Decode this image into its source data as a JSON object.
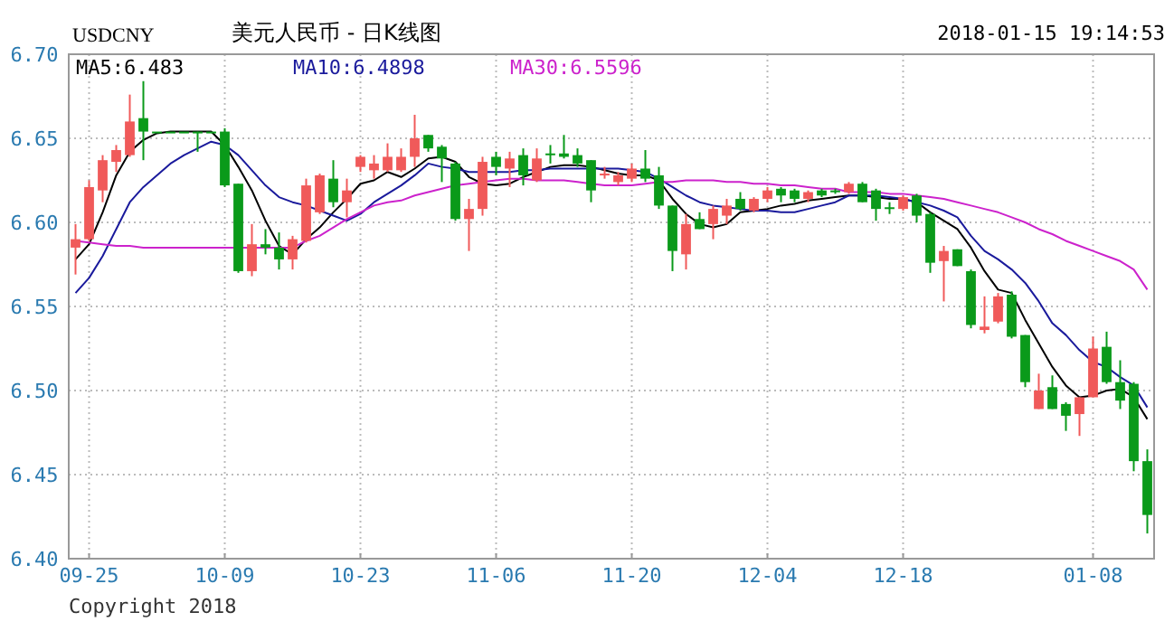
{
  "chart_data": {
    "type": "candlestick",
    "title": "美元人民币 - 日K线图",
    "subtitle": "USDCNY",
    "annotations": [
      "2018-01-15 19:14:53",
      "Copyright 2018"
    ],
    "categories": [
      null,
      "09-25",
      null,
      null,
      null,
      null,
      null,
      null,
      null,
      null,
      null,
      "10-09",
      null,
      null,
      null,
      null,
      null,
      null,
      null,
      null,
      null,
      "10-23",
      null,
      null,
      null,
      null,
      null,
      null,
      null,
      null,
      null,
      "11-06",
      null,
      null,
      null,
      null,
      null,
      null,
      null,
      null,
      null,
      "11-20",
      null,
      null,
      null,
      null,
      null,
      null,
      null,
      null,
      null,
      "12-04",
      null,
      null,
      null,
      null,
      null,
      null,
      null,
      null,
      null,
      "12-18",
      null,
      null,
      null,
      null,
      null,
      null,
      null,
      null,
      null,
      null,
      null,
      null,
      null,
      "01-08",
      null,
      null,
      null,
      null
    ],
    "ohlc": [
      [
        6.585,
        6.599,
        6.569,
        6.59
      ],
      [
        6.59,
        6.625,
        6.589,
        6.621
      ],
      [
        6.619,
        6.64,
        6.612,
        6.637
      ],
      [
        6.636,
        6.646,
        6.63,
        6.643
      ],
      [
        6.64,
        6.676,
        6.639,
        6.66
      ],
      [
        6.662,
        6.684,
        6.637,
        6.654
      ],
      [
        6.654,
        6.654,
        6.654,
        6.654
      ],
      [
        6.654,
        6.654,
        6.654,
        6.654
      ],
      [
        6.654,
        6.654,
        6.654,
        6.654
      ],
      [
        6.654,
        6.654,
        6.642,
        6.654
      ],
      [
        6.654,
        6.654,
        6.654,
        6.654
      ],
      [
        6.654,
        6.656,
        6.621,
        6.622
      ],
      [
        6.623,
        6.623,
        6.57,
        6.571
      ],
      [
        6.571,
        6.599,
        6.568,
        6.587
      ],
      [
        6.587,
        6.596,
        6.581,
        6.585
      ],
      [
        6.585,
        6.594,
        6.572,
        6.578
      ],
      [
        6.578,
        6.592,
        6.572,
        6.59
      ],
      [
        6.589,
        6.626,
        6.588,
        6.622
      ],
      [
        6.606,
        6.629,
        6.605,
        6.628
      ],
      [
        6.626,
        6.637,
        6.609,
        6.612
      ],
      [
        6.612,
        6.626,
        6.603,
        6.619
      ],
      [
        6.633,
        6.64,
        6.63,
        6.639
      ],
      [
        6.631,
        6.64,
        6.626,
        6.635
      ],
      [
        6.631,
        6.647,
        6.63,
        6.639
      ],
      [
        6.631,
        6.644,
        6.63,
        6.639
      ],
      [
        6.639,
        6.664,
        6.633,
        6.65
      ],
      [
        6.652,
        6.652,
        6.642,
        6.644
      ],
      [
        6.645,
        6.646,
        6.624,
        6.638
      ],
      [
        6.635,
        6.636,
        6.601,
        6.602
      ],
      [
        6.602,
        6.614,
        6.583,
        6.608
      ],
      [
        6.608,
        6.639,
        6.604,
        6.636
      ],
      [
        6.639,
        6.642,
        6.628,
        6.633
      ],
      [
        6.632,
        6.642,
        6.621,
        6.638
      ],
      [
        6.64,
        6.644,
        6.622,
        6.628
      ],
      [
        6.625,
        6.644,
        6.624,
        6.638
      ],
      [
        6.641,
        6.646,
        6.635,
        6.64
      ],
      [
        6.641,
        6.652,
        6.638,
        6.639
      ],
      [
        6.64,
        6.644,
        6.633,
        6.635
      ],
      [
        6.637,
        6.637,
        6.612,
        6.619
      ],
      [
        6.628,
        6.633,
        6.626,
        6.629
      ],
      [
        6.624,
        6.63,
        6.622,
        6.628
      ],
      [
        6.626,
        6.635,
        6.624,
        6.632
      ],
      [
        6.632,
        6.643,
        6.624,
        6.626
      ],
      [
        6.628,
        6.633,
        6.608,
        6.61
      ],
      [
        6.61,
        6.61,
        6.571,
        6.583
      ],
      [
        6.581,
        6.605,
        6.572,
        6.599
      ],
      [
        6.602,
        6.606,
        6.596,
        6.596
      ],
      [
        6.599,
        6.61,
        6.59,
        6.608
      ],
      [
        6.604,
        6.614,
        6.599,
        6.61
      ],
      [
        6.614,
        6.618,
        6.607,
        6.608
      ],
      [
        6.607,
        6.615,
        6.606,
        6.614
      ],
      [
        6.614,
        6.621,
        6.612,
        6.619
      ],
      [
        6.62,
        6.621,
        6.612,
        6.616
      ],
      [
        6.619,
        6.62,
        6.612,
        6.614
      ],
      [
        6.614,
        6.619,
        6.612,
        6.618
      ],
      [
        6.619,
        6.62,
        6.615,
        6.616
      ],
      [
        6.619,
        6.62,
        6.617,
        6.618
      ],
      [
        6.618,
        6.624,
        6.617,
        6.623
      ],
      [
        6.623,
        6.624,
        6.612,
        6.612
      ],
      [
        6.619,
        6.62,
        6.601,
        6.608
      ],
      [
        6.609,
        6.612,
        6.605,
        6.608
      ],
      [
        6.608,
        6.616,
        6.607,
        6.615
      ],
      [
        6.616,
        6.617,
        6.6,
        6.604
      ],
      [
        6.605,
        6.606,
        6.57,
        6.576
      ],
      [
        6.577,
        6.586,
        6.553,
        6.583
      ],
      [
        6.584,
        6.584,
        6.574,
        6.574
      ],
      [
        6.571,
        6.572,
        6.537,
        6.539
      ],
      [
        6.536,
        6.556,
        6.534,
        6.538
      ],
      [
        6.541,
        6.558,
        6.54,
        6.556
      ],
      [
        6.557,
        6.559,
        6.531,
        6.532
      ],
      [
        6.533,
        6.533,
        6.502,
        6.505
      ],
      [
        6.489,
        6.51,
        6.489,
        6.5
      ],
      [
        6.502,
        6.509,
        6.489,
        6.489
      ],
      [
        6.492,
        6.493,
        6.476,
        6.485
      ],
      [
        6.486,
        6.496,
        6.473,
        6.496
      ],
      [
        6.496,
        6.532,
        6.496,
        6.525
      ],
      [
        6.526,
        6.535,
        6.504,
        6.505
      ],
      [
        6.505,
        6.518,
        6.489,
        6.494
      ],
      [
        6.504,
        6.505,
        6.452,
        6.458
      ],
      [
        6.458,
        6.465,
        6.415,
        6.426
      ]
    ],
    "colors": [
      "#f05a5a",
      "#f05a5a",
      "#f05a5a",
      "#f05a5a",
      "#f05a5a",
      "#0a9a1a",
      "#0a9a1a",
      "#0a9a1a",
      "#0a9a1a",
      "#0a9a1a",
      "#0a9a1a",
      "#0a9a1a",
      "#0a9a1a",
      "#f05a5a",
      "#0a9a1a",
      "#0a9a1a",
      "#f05a5a",
      "#f05a5a",
      "#f05a5a",
      "#0a9a1a",
      "#f05a5a",
      "#f05a5a",
      "#f05a5a",
      "#f05a5a",
      "#f05a5a",
      "#f05a5a",
      "#0a9a1a",
      "#0a9a1a",
      "#0a9a1a",
      "#f05a5a",
      "#f05a5a",
      "#0a9a1a",
      "#f05a5a",
      "#0a9a1a",
      "#f05a5a",
      "#0a9a1a",
      "#0a9a1a",
      "#0a9a1a",
      "#0a9a1a",
      "#f05a5a",
      "#f05a5a",
      "#f05a5a",
      "#0a9a1a",
      "#0a9a1a",
      "#0a9a1a",
      "#f05a5a",
      "#0a9a1a",
      "#f05a5a",
      "#f05a5a",
      "#0a9a1a",
      "#f05a5a",
      "#f05a5a",
      "#0a9a1a",
      "#0a9a1a",
      "#f05a5a",
      "#0a9a1a",
      "#0a9a1a",
      "#f05a5a",
      "#0a9a1a",
      "#0a9a1a",
      "#0a9a1a",
      "#f05a5a",
      "#0a9a1a",
      "#0a9a1a",
      "#f05a5a",
      "#0a9a1a",
      "#0a9a1a",
      "#f05a5a",
      "#f05a5a",
      "#0a9a1a",
      "#0a9a1a",
      "#f05a5a",
      "#0a9a1a",
      "#0a9a1a",
      "#f05a5a",
      "#f05a5a",
      "#0a9a1a",
      "#0a9a1a",
      "#0a9a1a",
      "#0a9a1a"
    ],
    "series": [
      {
        "type": "line",
        "name": "MA5:6.483",
        "color": "#000000",
        "values": [
          6.578,
          6.587,
          6.606,
          6.628,
          6.642,
          6.649,
          6.653,
          6.654,
          6.654,
          6.654,
          6.654,
          6.646,
          6.633,
          6.619,
          6.601,
          6.586,
          6.581,
          6.59,
          6.597,
          6.606,
          6.614,
          6.623,
          6.625,
          6.63,
          6.627,
          6.632,
          6.638,
          6.639,
          6.636,
          6.627,
          6.623,
          6.622,
          6.623,
          6.627,
          6.63,
          6.633,
          6.634,
          6.634,
          6.633,
          6.631,
          6.629,
          6.628,
          6.628,
          6.625,
          6.614,
          6.605,
          6.599,
          6.597,
          6.599,
          6.606,
          6.607,
          6.608,
          6.61,
          6.611,
          6.613,
          6.614,
          6.615,
          6.616,
          6.616,
          6.615,
          6.614,
          6.614,
          6.612,
          6.606,
          6.601,
          6.596,
          6.585,
          6.571,
          6.56,
          6.558,
          6.542,
          6.528,
          6.514,
          6.503,
          6.496,
          6.497,
          6.5,
          6.501,
          6.496,
          6.483
        ]
      },
      {
        "type": "line",
        "name": "MA10:6.4898",
        "color": "#1a1a9c",
        "values": [
          6.558,
          6.567,
          6.58,
          6.596,
          6.612,
          6.621,
          6.628,
          6.635,
          6.64,
          6.644,
          6.648,
          6.646,
          6.64,
          6.631,
          6.622,
          6.615,
          6.612,
          6.61,
          6.607,
          6.604,
          6.601,
          6.605,
          6.612,
          6.617,
          6.622,
          6.628,
          6.635,
          6.633,
          6.632,
          6.63,
          6.63,
          6.63,
          6.63,
          6.631,
          6.631,
          6.632,
          6.632,
          6.632,
          6.632,
          6.632,
          6.632,
          6.631,
          6.63,
          6.626,
          6.621,
          6.616,
          6.612,
          6.61,
          6.609,
          6.608,
          6.607,
          6.607,
          6.606,
          6.606,
          6.608,
          6.61,
          6.612,
          6.616,
          6.616,
          6.616,
          6.615,
          6.614,
          6.612,
          6.61,
          6.607,
          6.603,
          6.592,
          6.583,
          6.578,
          6.572,
          6.564,
          6.553,
          6.54,
          6.533,
          6.524,
          6.517,
          6.514,
          6.508,
          6.503,
          6.49
        ]
      },
      {
        "type": "line",
        "name": "MA30:6.5596",
        "color": "#cc22cc",
        "values": [
          6.589,
          6.588,
          6.587,
          6.586,
          6.586,
          6.585,
          6.585,
          6.585,
          6.585,
          6.585,
          6.585,
          6.585,
          6.585,
          6.585,
          6.585,
          6.585,
          6.585,
          6.589,
          6.592,
          6.597,
          6.602,
          6.606,
          6.61,
          6.612,
          6.613,
          6.616,
          6.618,
          6.62,
          6.622,
          6.623,
          6.624,
          6.625,
          6.626,
          6.626,
          6.625,
          6.625,
          6.625,
          6.624,
          6.623,
          6.622,
          6.622,
          6.622,
          6.623,
          6.624,
          6.624,
          6.625,
          6.625,
          6.625,
          6.624,
          6.624,
          6.623,
          6.623,
          6.622,
          6.622,
          6.621,
          6.62,
          6.62,
          6.618,
          6.618,
          6.618,
          6.617,
          6.617,
          6.616,
          6.615,
          6.614,
          6.612,
          6.61,
          6.608,
          6.606,
          6.603,
          6.6,
          6.596,
          6.593,
          6.589,
          6.586,
          6.583,
          6.58,
          6.577,
          6.572,
          6.56
        ]
      }
    ],
    "ylim": [
      6.4,
      6.7
    ],
    "yticks": [
      {
        "value": 6.4,
        "label": "6.40"
      },
      {
        "value": 6.45,
        "label": "6.45"
      },
      {
        "value": 6.5,
        "label": "6.50"
      },
      {
        "value": 6.55,
        "label": "6.55"
      },
      {
        "value": 6.6,
        "label": "6.60"
      },
      {
        "value": 6.65,
        "label": "6.65"
      },
      {
        "value": 6.7,
        "label": "6.70"
      }
    ],
    "grid": true,
    "legend": "top left"
  }
}
